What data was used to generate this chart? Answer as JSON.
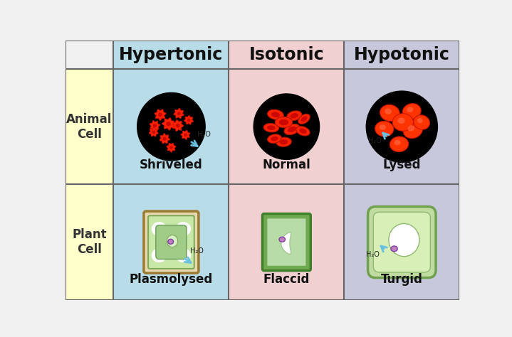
{
  "title_row": [
    "Hypertonic",
    "Isotonic",
    "Hypotonic"
  ],
  "row_labels": [
    "Animal\nCell",
    "Plant\nCell"
  ],
  "cell_labels": {
    "animal": [
      "Shriveled",
      "Normal",
      "Lysed"
    ],
    "plant": [
      "Plasmolysed",
      "Flaccid",
      "Turgid"
    ]
  },
  "bg_color": "#f0f0f0",
  "row_label_bg": "#ffffcc",
  "hypertonic_bg": "#b8dce8",
  "isotonic_bg": "#f0d0d0",
  "hypotonic_bg": "#c8c8dc",
  "title_fontsize": 17,
  "label_fontsize": 12,
  "row_label_fontsize": 12,
  "grid_line_color": "#666666"
}
